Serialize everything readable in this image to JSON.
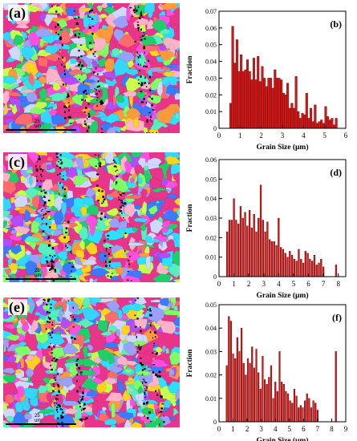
{
  "figure": {
    "panels": [
      {
        "map_letter": "(a)",
        "scalebar_label": "25 um"
      },
      {
        "map_letter": "(c)",
        "scalebar_label": "25 um"
      },
      {
        "map_letter": "(e)",
        "scalebar_label": "25 um"
      }
    ],
    "colors": {
      "bar_fill": "#cc1a1a",
      "bar_stroke": "#6a0000",
      "map_palette": [
        "#e8348a",
        "#33d6ff",
        "#1fcf6a",
        "#b24cff",
        "#ffd21f",
        "#ff6b6b",
        "#3a7bff",
        "#7fff66",
        "#ff9a3c",
        "#cfd8ff",
        "#ff4fe1",
        "#56f0c0",
        "#9aa0ff",
        "#ffb3c8",
        "#2ee0ff",
        "#c8ff4a"
      ]
    }
  },
  "chart_data": [
    {
      "type": "bar",
      "panel_label": "(b)",
      "xlabel": "Grain Size (μm)",
      "ylabel": "Fraction",
      "xlim": [
        0,
        6
      ],
      "ylim": [
        0,
        0.07
      ],
      "xticks": [
        0,
        1,
        2,
        3,
        4,
        5,
        6
      ],
      "yticks": [
        0,
        0.01,
        0.02,
        0.03,
        0.04,
        0.05,
        0.06,
        0.07
      ],
      "ytick_labels": [
        "0",
        "0.01",
        "0.02",
        "0.03",
        "0.04",
        "0.05",
        "0.06",
        "0.07"
      ],
      "x": [
        0.55,
        0.65,
        0.75,
        0.85,
        0.95,
        1.05,
        1.15,
        1.25,
        1.35,
        1.45,
        1.55,
        1.65,
        1.75,
        1.85,
        1.95,
        2.05,
        2.15,
        2.25,
        2.35,
        2.45,
        2.55,
        2.65,
        2.75,
        2.85,
        2.95,
        3.05,
        3.15,
        3.25,
        3.35,
        3.45,
        3.55,
        3.65,
        3.75,
        3.85,
        3.95,
        4.05,
        4.15,
        4.25,
        4.35,
        4.45,
        4.55,
        4.65,
        4.75,
        4.85,
        4.95,
        5.05,
        5.15,
        5.25,
        5.35,
        5.45,
        5.55
      ],
      "values": [
        0.015,
        0.061,
        0.039,
        0.053,
        0.034,
        0.044,
        0.034,
        0.035,
        0.041,
        0.034,
        0.029,
        0.042,
        0.029,
        0.043,
        0.028,
        0.037,
        0.03,
        0.025,
        0.03,
        0.03,
        0.024,
        0.035,
        0.03,
        0.03,
        0.029,
        0.021,
        0.02,
        0.027,
        0.012,
        0.015,
        0.012,
        0.031,
        0.01,
        0.006,
        0.009,
        0.008,
        0.021,
        0.006,
        0.012,
        0.004,
        0.014,
        0.003,
        0.004,
        0.005,
        0.003,
        0.013,
        0.007,
        0.005,
        0.006,
        0.002,
        0.006
      ]
    },
    {
      "type": "bar",
      "panel_label": "(d)",
      "xlabel": "Grain Size (μm)",
      "ylabel": "Fraction",
      "xlim": [
        0,
        8.5
      ],
      "ylim": [
        0,
        0.06
      ],
      "xticks": [
        0,
        1,
        2,
        3,
        4,
        5,
        6,
        7,
        8
      ],
      "yticks": [
        0,
        0.01,
        0.02,
        0.03,
        0.04,
        0.05,
        0.06
      ],
      "ytick_labels": [
        "0",
        "0.01",
        "0.02",
        "0.03",
        "0.04",
        "0.05",
        "0.06"
      ],
      "x": [
        0.55,
        0.7,
        0.85,
        1.0,
        1.15,
        1.3,
        1.45,
        1.6,
        1.75,
        1.9,
        2.05,
        2.2,
        2.35,
        2.5,
        2.65,
        2.8,
        2.95,
        3.1,
        3.25,
        3.4,
        3.55,
        3.7,
        3.85,
        4.0,
        4.15,
        4.3,
        4.45,
        4.6,
        4.75,
        4.9,
        5.05,
        5.2,
        5.35,
        5.5,
        5.65,
        5.8,
        5.95,
        6.1,
        6.25,
        6.4,
        6.55,
        6.7,
        6.85,
        7.0,
        7.85
      ],
      "values": [
        0.023,
        0.029,
        0.029,
        0.04,
        0.029,
        0.027,
        0.036,
        0.03,
        0.033,
        0.026,
        0.034,
        0.025,
        0.032,
        0.023,
        0.03,
        0.047,
        0.029,
        0.023,
        0.028,
        0.019,
        0.018,
        0.018,
        0.016,
        0.03,
        0.015,
        0.014,
        0.012,
        0.01,
        0.013,
        0.011,
        0.009,
        0.008,
        0.014,
        0.009,
        0.007,
        0.013,
        0.012,
        0.009,
        0.008,
        0.011,
        0.006,
        0.007,
        0.009,
        0.005,
        0.006
      ]
    },
    {
      "type": "bar",
      "panel_label": "(f)",
      "xlabel": "Grain Size (μm)",
      "ylabel": "Fraction",
      "xlim": [
        0,
        9
      ],
      "ylim": [
        0,
        0.05
      ],
      "xticks": [
        0,
        1,
        2,
        3,
        4,
        5,
        6,
        7,
        8,
        9
      ],
      "yticks": [
        0,
        0.01,
        0.02,
        0.03,
        0.04,
        0.05
      ],
      "ytick_labels": [
        "0",
        "0.01",
        "0.02",
        "0.03",
        "0.04",
        "0.05"
      ],
      "x": [
        0.55,
        0.7,
        0.85,
        1.0,
        1.15,
        1.3,
        1.45,
        1.6,
        1.75,
        1.9,
        2.05,
        2.2,
        2.35,
        2.5,
        2.65,
        2.8,
        2.95,
        3.1,
        3.25,
        3.4,
        3.55,
        3.7,
        3.85,
        4.0,
        4.15,
        4.3,
        4.45,
        4.6,
        4.75,
        4.9,
        5.05,
        5.2,
        5.35,
        5.5,
        5.65,
        5.8,
        5.95,
        6.1,
        6.25,
        6.4,
        6.55,
        6.7,
        6.85,
        7.0,
        8.3
      ],
      "values": [
        0.024,
        0.045,
        0.043,
        0.029,
        0.027,
        0.036,
        0.03,
        0.04,
        0.025,
        0.02,
        0.027,
        0.025,
        0.032,
        0.023,
        0.031,
        0.021,
        0.014,
        0.028,
        0.018,
        0.016,
        0.019,
        0.024,
        0.01,
        0.017,
        0.013,
        0.03,
        0.017,
        0.016,
        0.013,
        0.012,
        0.009,
        0.008,
        0.014,
        0.011,
        0.006,
        0.007,
        0.006,
        0.009,
        0.012,
        0.01,
        0.006,
        0.009,
        0.008,
        0.005,
        0.03
      ]
    }
  ]
}
